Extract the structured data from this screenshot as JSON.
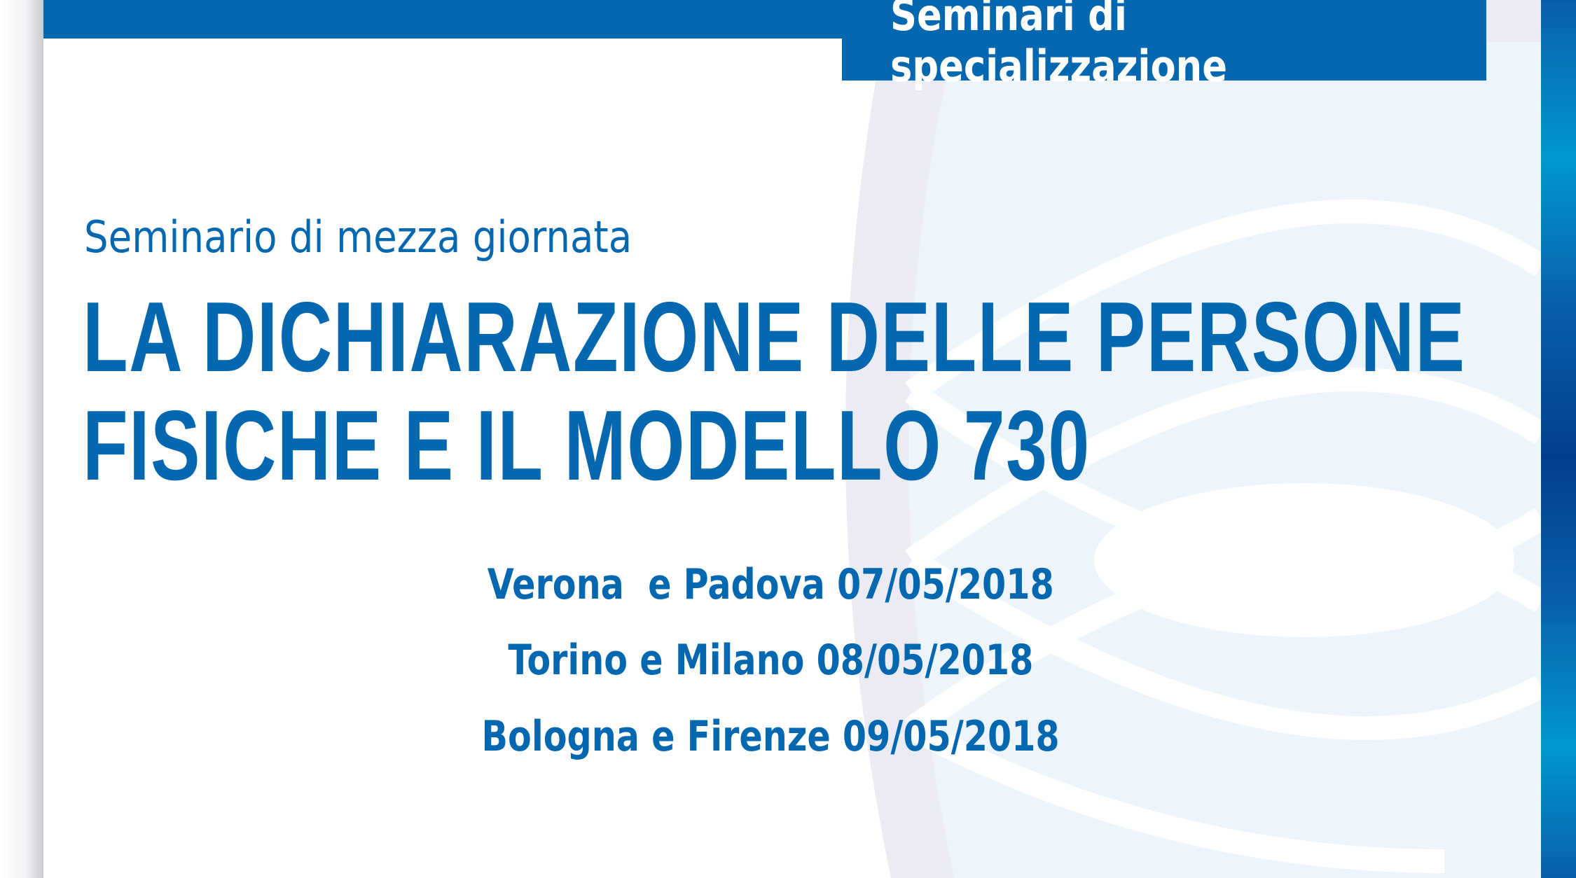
{
  "header": {
    "tab_label": "Seminari di specializzazione"
  },
  "subtitle": "Seminario di mezza giornata",
  "title": {
    "line1": "LA DICHIARAZIONE DELLE PERSONE",
    "line2": "FISICHE E IL MODELLO 730"
  },
  "dates": [
    "Verona  e Padova 07/05/2018",
    "Torino e Milano 08/05/2018",
    "Bologna e Firenze 09/05/2018"
  ],
  "colors": {
    "brand_blue": "#0468b0",
    "ring_light": "#eef4fb",
    "ring_gray": "#ebebf4"
  }
}
